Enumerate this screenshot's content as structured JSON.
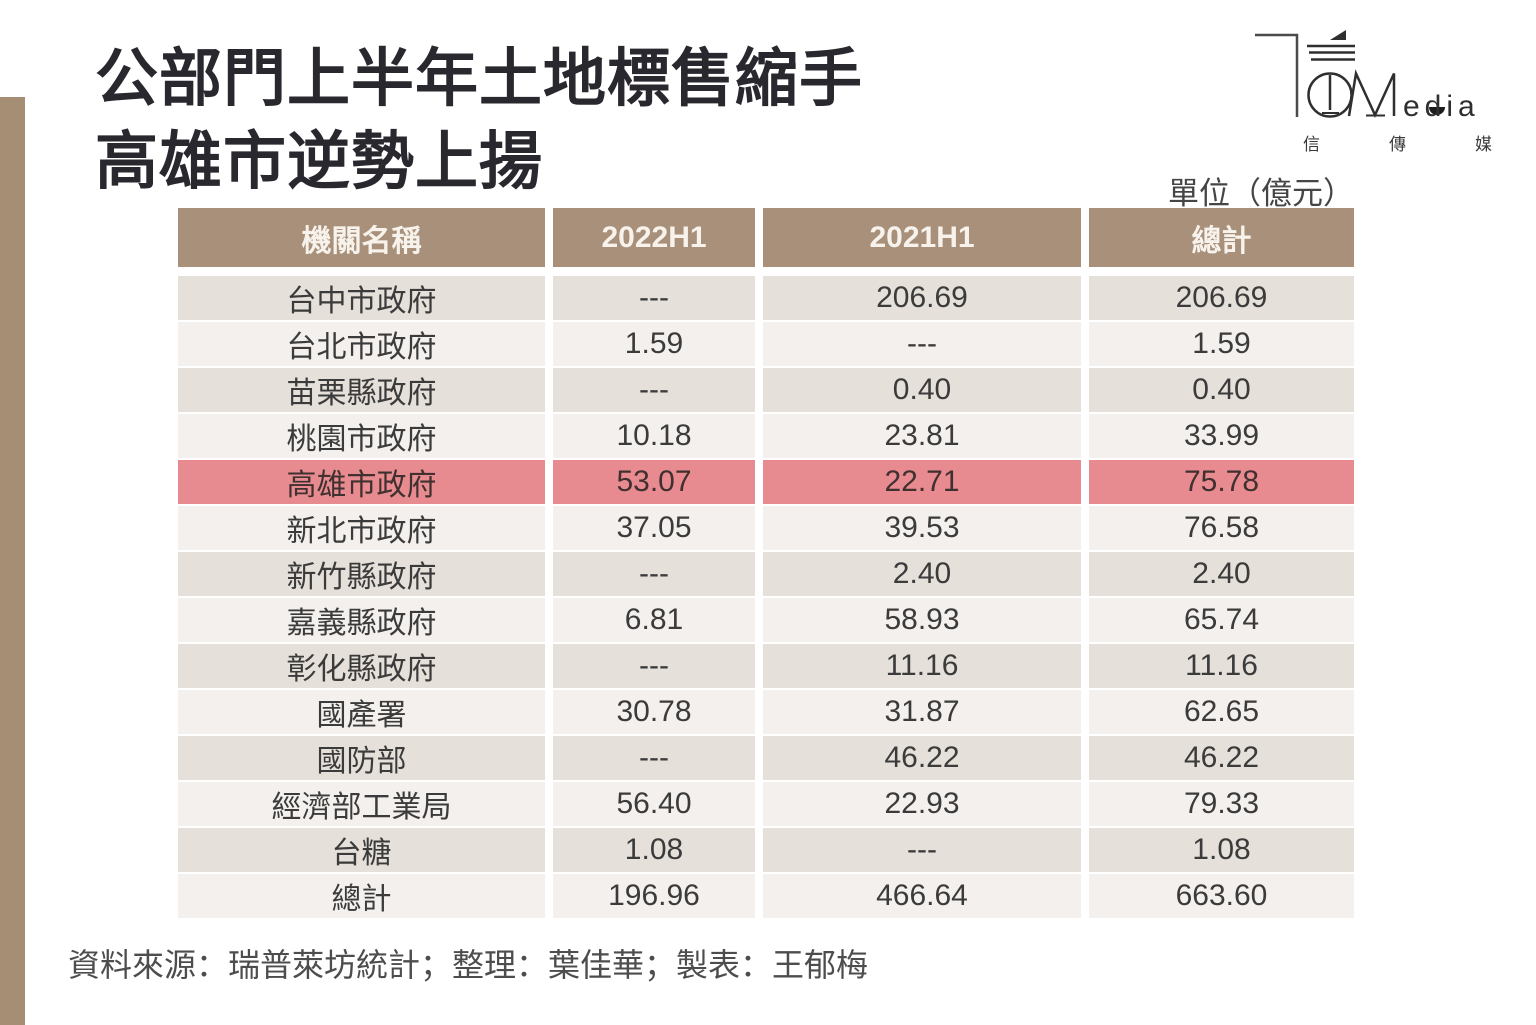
{
  "header": {
    "title_line1": "公部門上半年土地標售縮手",
    "title_line2": "高雄市逆勢上揚",
    "unit_label": "單位（億元）"
  },
  "logo": {
    "latin": "edia",
    "cn": "信傳媒"
  },
  "chart_data": {
    "type": "table",
    "title": "公部門上半年土地標售縮手 高雄市逆勢上揚",
    "unit": "億元",
    "columns": [
      "機關名稱",
      "2022H1",
      "2021H1",
      "總計"
    ],
    "rows": [
      [
        "台中市政府",
        "---",
        "206.69",
        "206.69"
      ],
      [
        "台北市政府",
        "1.59",
        "---",
        "1.59"
      ],
      [
        "苗栗縣政府",
        "---",
        "0.40",
        "0.40"
      ],
      [
        "桃園市政府",
        "10.18",
        "23.81",
        "33.99"
      ],
      [
        "高雄市政府",
        "53.07",
        "22.71",
        "75.78"
      ],
      [
        "新北市政府",
        "37.05",
        "39.53",
        "76.58"
      ],
      [
        "新竹縣政府",
        "---",
        "2.40",
        "2.40"
      ],
      [
        "嘉義縣政府",
        "6.81",
        "58.93",
        "65.74"
      ],
      [
        "彰化縣政府",
        "---",
        "11.16",
        "11.16"
      ],
      [
        "國產署",
        "30.78",
        "31.87",
        "62.65"
      ],
      [
        "國防部",
        "---",
        "46.22",
        "46.22"
      ],
      [
        "經濟部工業局",
        "56.40",
        "22.93",
        "79.33"
      ],
      [
        "台糖",
        "1.08",
        "---",
        "1.08"
      ],
      [
        "總計",
        "196.96",
        "466.64",
        "663.60"
      ]
    ],
    "highlight_row_index": 4,
    "highlight_row_name": "高雄市政府"
  },
  "footer": {
    "credit": "資料來源：瑞普萊坊統計；整理：葉佳華；製表：王郁梅"
  },
  "colors": {
    "header_bg": "#a8907a",
    "row_dark": "#e6e0da",
    "row_light": "#f4f0ed",
    "row_highlight": "#e78b90",
    "accent_bar": "#a68e75",
    "title_text": "#28282e"
  }
}
